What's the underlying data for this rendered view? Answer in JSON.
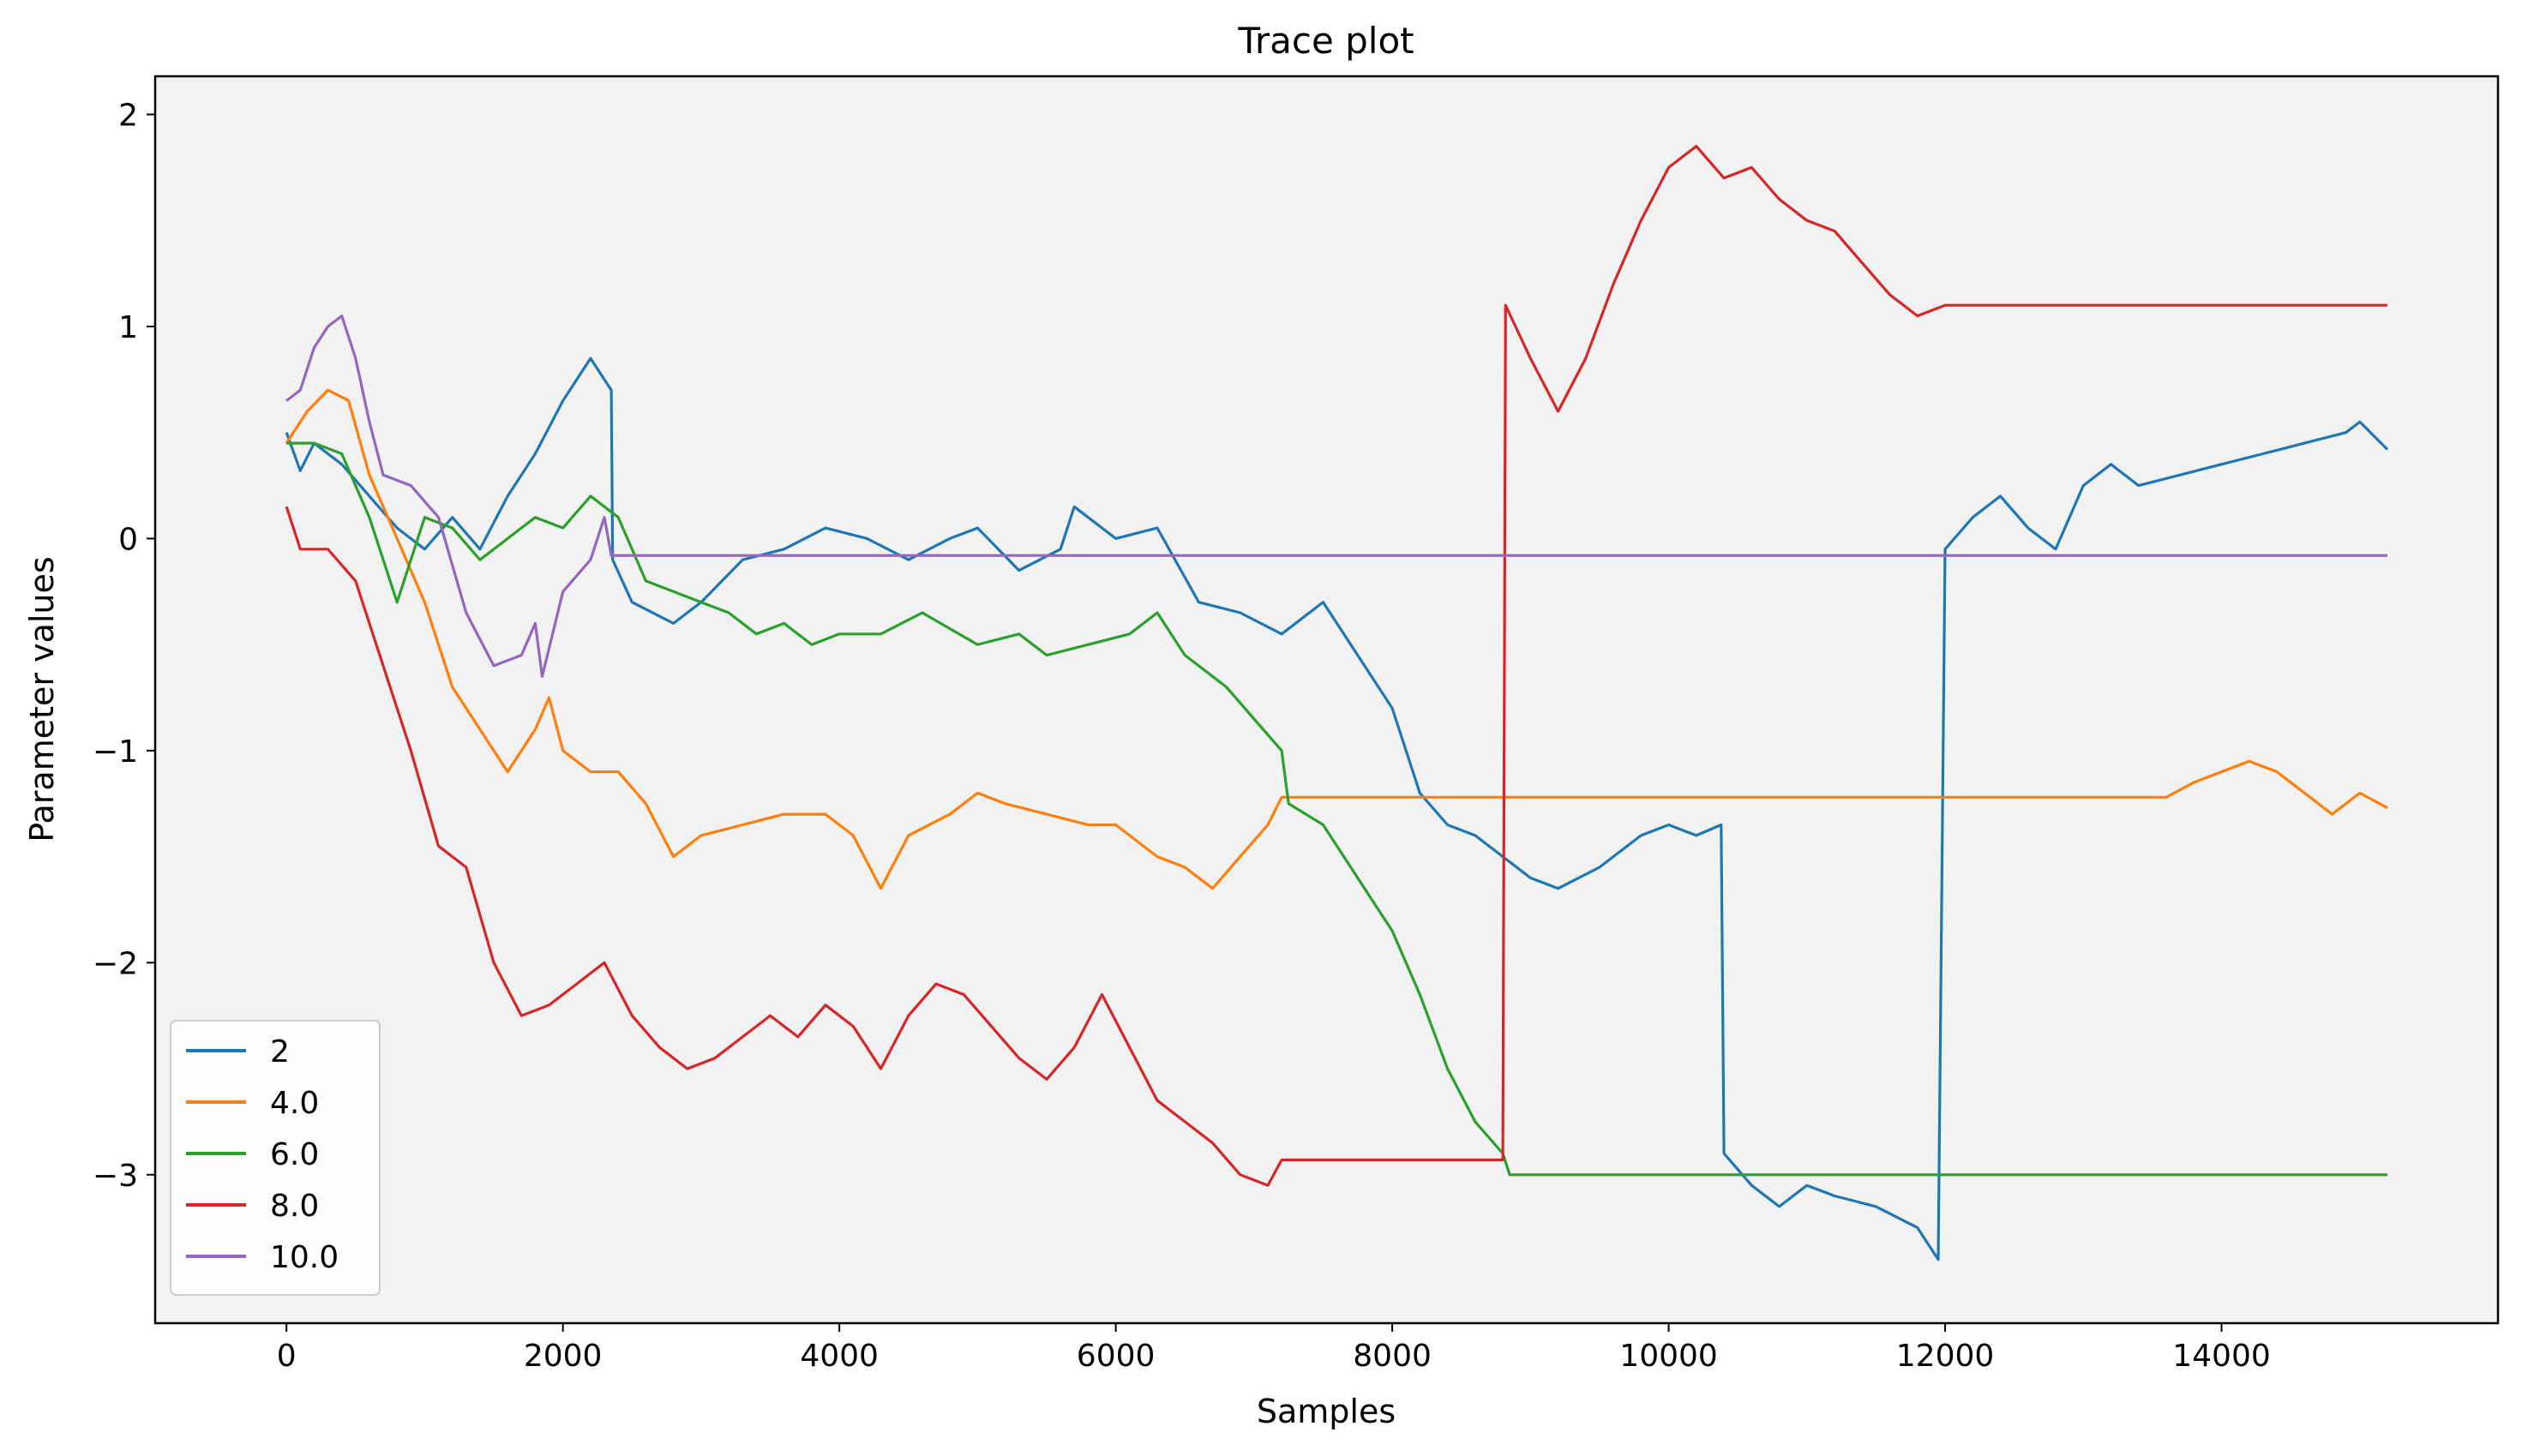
{
  "chart_data": {
    "type": "line",
    "title": "Trace plot",
    "xlabel": "Samples",
    "ylabel": "Parameter values",
    "xlim": [
      -950,
      16000
    ],
    "ylim": [
      -3.7,
      2.18
    ],
    "xticks": [
      0,
      2000,
      4000,
      6000,
      8000,
      10000,
      12000,
      14000
    ],
    "xtick_labels": [
      "0",
      "2000",
      "4000",
      "6000",
      "8000",
      "10000",
      "12000",
      "14000"
    ],
    "yticks": [
      -3,
      -2,
      -1,
      0,
      1,
      2
    ],
    "ytick_labels": [
      "−3",
      "−2",
      "−1",
      "0",
      "1",
      "2"
    ],
    "grid": false,
    "background": "#f2f2f2",
    "legend_position": "lower-left",
    "series": [
      {
        "name": "2",
        "color": "#1f77b4",
        "points": [
          [
            0,
            0.5
          ],
          [
            100,
            0.32
          ],
          [
            200,
            0.45
          ],
          [
            400,
            0.35
          ],
          [
            600,
            0.2
          ],
          [
            800,
            0.05
          ],
          [
            1000,
            -0.05
          ],
          [
            1200,
            0.1
          ],
          [
            1400,
            -0.05
          ],
          [
            1600,
            0.2
          ],
          [
            1800,
            0.4
          ],
          [
            2000,
            0.65
          ],
          [
            2200,
            0.85
          ],
          [
            2350,
            0.7
          ],
          [
            2360,
            -0.1
          ],
          [
            2500,
            -0.3
          ],
          [
            2800,
            -0.4
          ],
          [
            3000,
            -0.3
          ],
          [
            3300,
            -0.1
          ],
          [
            3600,
            -0.05
          ],
          [
            3900,
            0.05
          ],
          [
            4200,
            0.0
          ],
          [
            4500,
            -0.1
          ],
          [
            4800,
            0.0
          ],
          [
            5000,
            0.05
          ],
          [
            5300,
            -0.15
          ],
          [
            5600,
            -0.05
          ],
          [
            5700,
            0.15
          ],
          [
            6000,
            0.0
          ],
          [
            6300,
            0.05
          ],
          [
            6600,
            -0.3
          ],
          [
            6900,
            -0.35
          ],
          [
            7200,
            -0.45
          ],
          [
            7500,
            -0.3
          ],
          [
            7800,
            -0.6
          ],
          [
            8000,
            -0.8
          ],
          [
            8200,
            -1.2
          ],
          [
            8400,
            -1.35
          ],
          [
            8600,
            -1.4
          ],
          [
            8800,
            -1.5
          ],
          [
            9000,
            -1.6
          ],
          [
            9200,
            -1.65
          ],
          [
            9500,
            -1.55
          ],
          [
            9800,
            -1.4
          ],
          [
            10000,
            -1.35
          ],
          [
            10200,
            -1.4
          ],
          [
            10380,
            -1.35
          ],
          [
            10400,
            -2.9
          ],
          [
            10600,
            -3.05
          ],
          [
            10800,
            -3.15
          ],
          [
            11000,
            -3.05
          ],
          [
            11200,
            -3.1
          ],
          [
            11500,
            -3.15
          ],
          [
            11800,
            -3.25
          ],
          [
            11950,
            -3.4
          ],
          [
            12000,
            -0.05
          ],
          [
            12200,
            0.1
          ],
          [
            12400,
            0.2
          ],
          [
            12600,
            0.05
          ],
          [
            12800,
            -0.05
          ],
          [
            13000,
            0.25
          ],
          [
            13200,
            0.35
          ],
          [
            13400,
            0.25
          ],
          [
            13700,
            0.3
          ],
          [
            14000,
            0.35
          ],
          [
            14300,
            0.4
          ],
          [
            14600,
            0.45
          ],
          [
            14900,
            0.5
          ],
          [
            15000,
            0.55
          ],
          [
            15200,
            0.42
          ]
        ]
      },
      {
        "name": "4.0",
        "color": "#ff7f0e",
        "points": [
          [
            0,
            0.45
          ],
          [
            150,
            0.6
          ],
          [
            300,
            0.7
          ],
          [
            450,
            0.65
          ],
          [
            600,
            0.3
          ],
          [
            800,
            0.0
          ],
          [
            1000,
            -0.3
          ],
          [
            1200,
            -0.7
          ],
          [
            1400,
            -0.9
          ],
          [
            1600,
            -1.1
          ],
          [
            1800,
            -0.9
          ],
          [
            1900,
            -0.75
          ],
          [
            2000,
            -1.0
          ],
          [
            2200,
            -1.1
          ],
          [
            2400,
            -1.1
          ],
          [
            2600,
            -1.25
          ],
          [
            2800,
            -1.5
          ],
          [
            3000,
            -1.4
          ],
          [
            3300,
            -1.35
          ],
          [
            3600,
            -1.3
          ],
          [
            3900,
            -1.3
          ],
          [
            4100,
            -1.4
          ],
          [
            4300,
            -1.65
          ],
          [
            4500,
            -1.4
          ],
          [
            4800,
            -1.3
          ],
          [
            5000,
            -1.2
          ],
          [
            5200,
            -1.25
          ],
          [
            5500,
            -1.3
          ],
          [
            5800,
            -1.35
          ],
          [
            6000,
            -1.35
          ],
          [
            6300,
            -1.5
          ],
          [
            6500,
            -1.55
          ],
          [
            6700,
            -1.65
          ],
          [
            6900,
            -1.5
          ],
          [
            7100,
            -1.35
          ],
          [
            7200,
            -1.22
          ],
          [
            13600,
            -1.22
          ],
          [
            13800,
            -1.15
          ],
          [
            14000,
            -1.1
          ],
          [
            14200,
            -1.05
          ],
          [
            14400,
            -1.1
          ],
          [
            14600,
            -1.2
          ],
          [
            14800,
            -1.3
          ],
          [
            15000,
            -1.2
          ],
          [
            15200,
            -1.27
          ]
        ]
      },
      {
        "name": "6.0",
        "color": "#2ca02c",
        "points": [
          [
            0,
            0.45
          ],
          [
            200,
            0.45
          ],
          [
            400,
            0.4
          ],
          [
            600,
            0.1
          ],
          [
            800,
            -0.3
          ],
          [
            1000,
            0.1
          ],
          [
            1200,
            0.05
          ],
          [
            1400,
            -0.1
          ],
          [
            1600,
            0.0
          ],
          [
            1800,
            0.1
          ],
          [
            2000,
            0.05
          ],
          [
            2200,
            0.2
          ],
          [
            2400,
            0.1
          ],
          [
            2600,
            -0.2
          ],
          [
            2800,
            -0.25
          ],
          [
            3000,
            -0.3
          ],
          [
            3200,
            -0.35
          ],
          [
            3400,
            -0.45
          ],
          [
            3600,
            -0.4
          ],
          [
            3800,
            -0.5
          ],
          [
            4000,
            -0.45
          ],
          [
            4300,
            -0.45
          ],
          [
            4600,
            -0.35
          ],
          [
            5000,
            -0.5
          ],
          [
            5300,
            -0.45
          ],
          [
            5500,
            -0.55
          ],
          [
            5800,
            -0.5
          ],
          [
            6100,
            -0.45
          ],
          [
            6300,
            -0.35
          ],
          [
            6500,
            -0.55
          ],
          [
            6800,
            -0.7
          ],
          [
            7000,
            -0.85
          ],
          [
            7200,
            -1.0
          ],
          [
            7250,
            -1.25
          ],
          [
            7500,
            -1.35
          ],
          [
            7800,
            -1.65
          ],
          [
            8000,
            -1.85
          ],
          [
            8200,
            -2.15
          ],
          [
            8400,
            -2.5
          ],
          [
            8600,
            -2.75
          ],
          [
            8800,
            -2.9
          ],
          [
            8850,
            -3.0
          ],
          [
            15200,
            -3.0
          ]
        ]
      },
      {
        "name": "8.0",
        "color": "#d62728",
        "points": [
          [
            0,
            0.15
          ],
          [
            100,
            -0.05
          ],
          [
            300,
            -0.05
          ],
          [
            500,
            -0.2
          ],
          [
            700,
            -0.6
          ],
          [
            900,
            -1.0
          ],
          [
            1100,
            -1.45
          ],
          [
            1300,
            -1.55
          ],
          [
            1500,
            -2.0
          ],
          [
            1700,
            -2.25
          ],
          [
            1900,
            -2.2
          ],
          [
            2100,
            -2.1
          ],
          [
            2300,
            -2.0
          ],
          [
            2500,
            -2.25
          ],
          [
            2700,
            -2.4
          ],
          [
            2900,
            -2.5
          ],
          [
            3100,
            -2.45
          ],
          [
            3300,
            -2.35
          ],
          [
            3500,
            -2.25
          ],
          [
            3700,
            -2.35
          ],
          [
            3900,
            -2.2
          ],
          [
            4100,
            -2.3
          ],
          [
            4300,
            -2.5
          ],
          [
            4500,
            -2.25
          ],
          [
            4700,
            -2.1
          ],
          [
            4900,
            -2.15
          ],
          [
            5100,
            -2.3
          ],
          [
            5300,
            -2.45
          ],
          [
            5500,
            -2.55
          ],
          [
            5700,
            -2.4
          ],
          [
            5900,
            -2.15
          ],
          [
            6100,
            -2.4
          ],
          [
            6300,
            -2.65
          ],
          [
            6500,
            -2.75
          ],
          [
            6700,
            -2.85
          ],
          [
            6900,
            -3.0
          ],
          [
            7100,
            -3.05
          ],
          [
            7200,
            -2.93
          ],
          [
            8800,
            -2.93
          ],
          [
            8820,
            1.1
          ],
          [
            9000,
            0.85
          ],
          [
            9200,
            0.6
          ],
          [
            9400,
            0.85
          ],
          [
            9600,
            1.2
          ],
          [
            9800,
            1.5
          ],
          [
            10000,
            1.75
          ],
          [
            10200,
            1.85
          ],
          [
            10400,
            1.7
          ],
          [
            10600,
            1.75
          ],
          [
            10800,
            1.6
          ],
          [
            11000,
            1.5
          ],
          [
            11200,
            1.45
          ],
          [
            11400,
            1.3
          ],
          [
            11600,
            1.15
          ],
          [
            11800,
            1.05
          ],
          [
            12000,
            1.1
          ],
          [
            15200,
            1.1
          ]
        ]
      },
      {
        "name": "10.0",
        "color": "#9467bd",
        "points": [
          [
            0,
            0.65
          ],
          [
            100,
            0.7
          ],
          [
            200,
            0.9
          ],
          [
            300,
            1.0
          ],
          [
            400,
            1.05
          ],
          [
            500,
            0.85
          ],
          [
            600,
            0.55
          ],
          [
            700,
            0.3
          ],
          [
            900,
            0.25
          ],
          [
            1100,
            0.1
          ],
          [
            1300,
            -0.35
          ],
          [
            1500,
            -0.6
          ],
          [
            1700,
            -0.55
          ],
          [
            1800,
            -0.4
          ],
          [
            1850,
            -0.65
          ],
          [
            2000,
            -0.25
          ],
          [
            2200,
            -0.1
          ],
          [
            2300,
            0.1
          ],
          [
            2350,
            -0.08
          ],
          [
            15200,
            -0.08
          ]
        ]
      }
    ]
  }
}
